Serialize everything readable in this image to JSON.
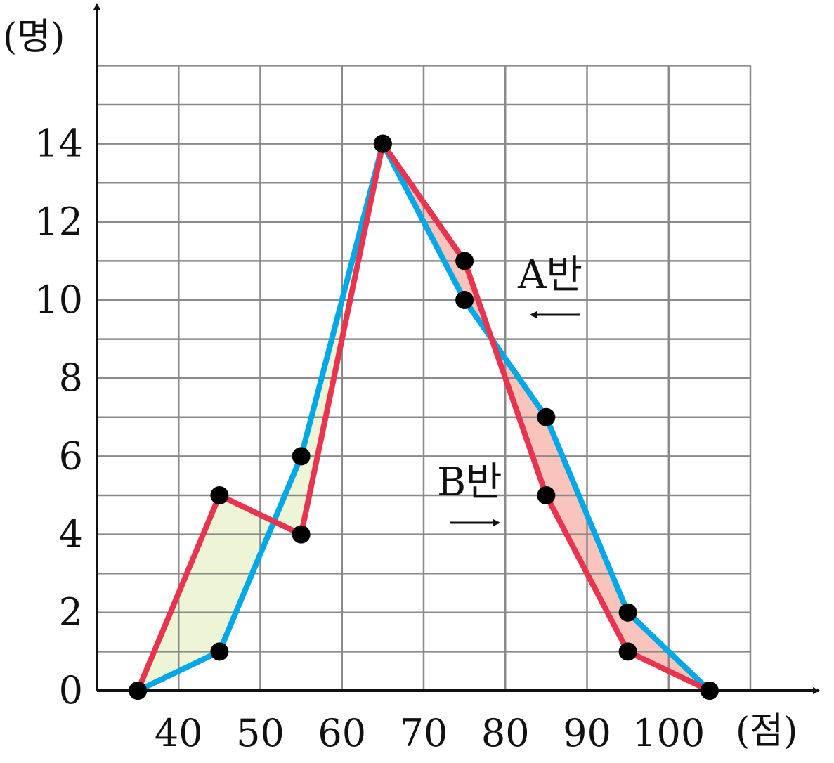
{
  "chart_data": {
    "type": "line",
    "title": "",
    "xlabel": "(점)",
    "ylabel": "(명)",
    "x_ticks": [
      "40",
      "50",
      "60",
      "70",
      "80",
      "90",
      "100"
    ],
    "y_ticks": [
      "0",
      "2",
      "4",
      "6",
      "8",
      "10",
      "12",
      "14"
    ],
    "xlim": [
      30,
      110
    ],
    "ylim": [
      0,
      16
    ],
    "grid": true,
    "series": [
      {
        "name": "A반",
        "arrow": "←",
        "color": "#00a8e8",
        "x": [
          35,
          45,
          55,
          65,
          75,
          85,
          95,
          105
        ],
        "values": [
          0,
          1,
          6,
          14,
          10,
          7,
          2,
          0
        ]
      },
      {
        "name": "B반",
        "arrow": "→",
        "color": "#e8344e",
        "x": [
          35,
          45,
          55,
          65,
          75,
          85,
          95,
          105
        ],
        "values": [
          0,
          5,
          4,
          14,
          11,
          5,
          1,
          0
        ]
      }
    ],
    "shading": [
      {
        "between": [
          35,
          60
        ],
        "color": "#eef4d6"
      },
      {
        "between": [
          65,
          105
        ],
        "color": "#f8c4bc"
      }
    ]
  }
}
